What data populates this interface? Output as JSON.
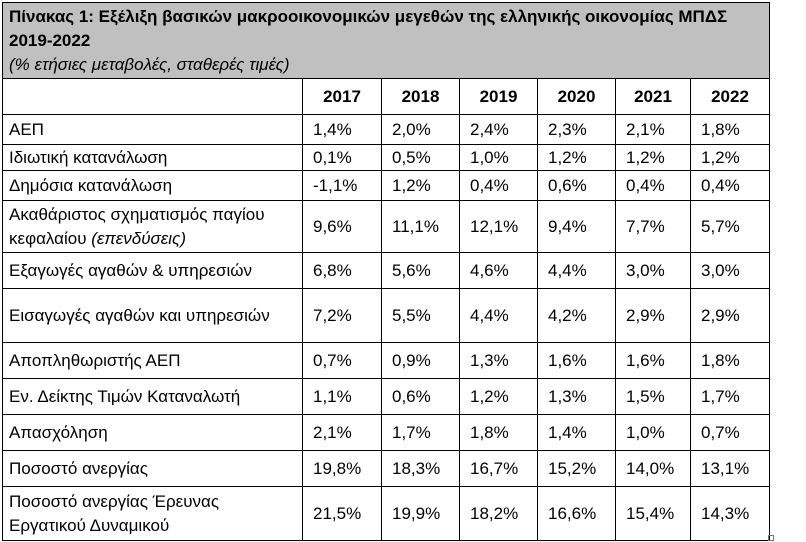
{
  "header": {
    "title": "Πίνακας 1: Εξέλιξη βασικών μακροοικονομικών μεγεθών της ελληνικής οικονομίας ΜΠΔΣ 2019-2022",
    "subtitle": "(% ετήσιες μεταβολές, σταθερές τιμές)"
  },
  "table": {
    "columns": [
      "2017",
      "2018",
      "2019",
      "2020",
      "2021",
      "2022"
    ],
    "rows": [
      {
        "label": "ΑΕΠ",
        "values": [
          "1,4%",
          "2,0%",
          "2,4%",
          "2,3%",
          "2,1%",
          "1,8%"
        ]
      },
      {
        "label": "Ιδιωτική κατανάλωση",
        "values": [
          "0,1%",
          "0,5%",
          "1,0%",
          "1,2%",
          "1,2%",
          "1,2%"
        ]
      },
      {
        "label": "Δημόσια κατανάλωση",
        "values": [
          "-1,1%",
          "1,2%",
          "0,4%",
          "0,6%",
          "0,4%",
          "0,4%"
        ]
      },
      {
        "label": "Ακαθάριστος σχηματισμός παγίου κεφαλαίου",
        "note": "(επενδύσεις)",
        "values": [
          "9,6%",
          "11,1%",
          "12,1%",
          "9,4%",
          "7,7%",
          "5,7%"
        ]
      },
      {
        "label": "Εξαγωγές αγαθών & υπηρεσιών",
        "values": [
          "6,8%",
          "5,6%",
          "4,6%",
          "4,4%",
          "3,0%",
          "3,0%"
        ]
      },
      {
        "label": "Εισαγωγές αγαθών και υπηρεσιών",
        "values": [
          "7,2%",
          "5,5%",
          "4,4%",
          "4,2%",
          "2,9%",
          "2,9%"
        ]
      },
      {
        "label": "Αποπληθωριστής ΑΕΠ",
        "values": [
          "0,7%",
          "0,9%",
          "1,3%",
          "1,6%",
          "1,6%",
          "1,8%"
        ]
      },
      {
        "label": "Εν. Δείκτης Τιμών Καταναλωτή",
        "values": [
          "1,1%",
          "0,6%",
          "1,2%",
          "1,3%",
          "1,5%",
          "1,7%"
        ]
      },
      {
        "label": "Απασχόληση",
        "values": [
          "2,1%",
          "1,7%",
          "1,8%",
          "1,4%",
          "1,0%",
          "0,7%"
        ]
      },
      {
        "label": "Ποσοστό ανεργίας",
        "values": [
          "19,8%",
          "18,3%",
          "16,7%",
          "15,2%",
          "14,0%",
          "13,1%"
        ]
      },
      {
        "label": "Ποσοστό ανεργίας Έρευνας Εργατικού Δυναμικού",
        "values": [
          "21,5%",
          "19,9%",
          "18,2%",
          "16,6%",
          "15,4%",
          "14,3%"
        ]
      }
    ]
  }
}
